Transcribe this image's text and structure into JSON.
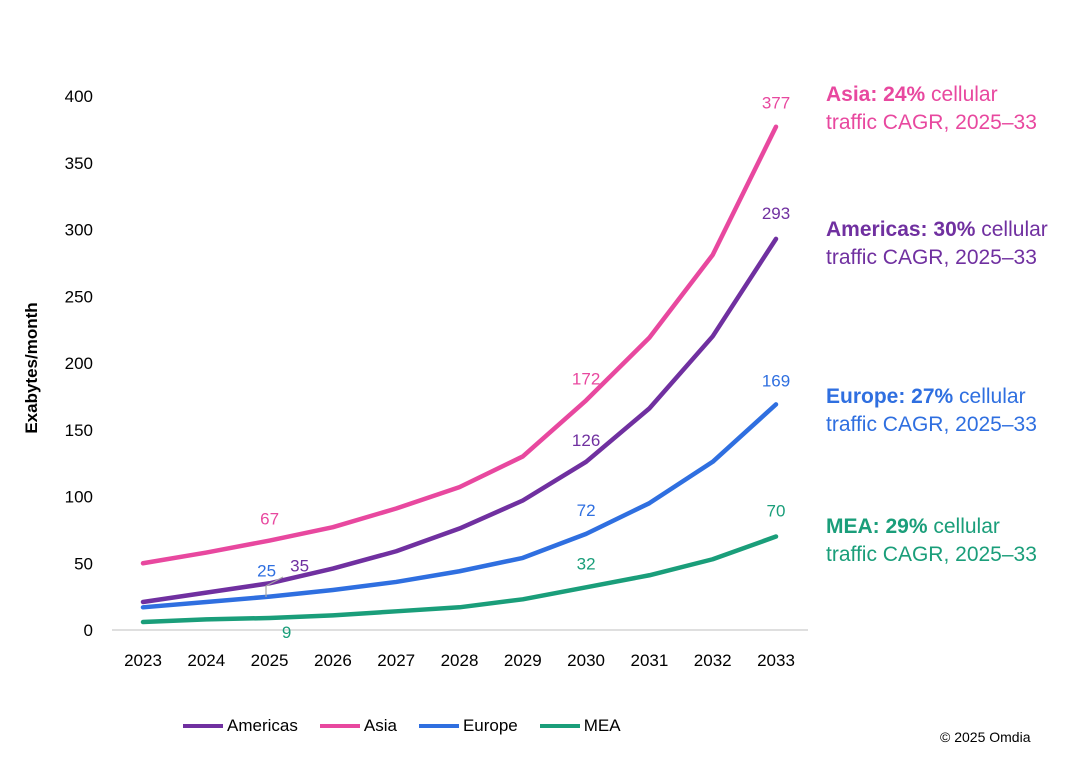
{
  "chart_data": {
    "type": "line",
    "title": "",
    "xlabel": "",
    "ylabel": "Exabytes/month",
    "ylim": [
      0,
      400
    ],
    "yticks": [
      0,
      50,
      100,
      150,
      200,
      250,
      300,
      350,
      400
    ],
    "x": [
      "2023",
      "2024",
      "2025",
      "2026",
      "2027",
      "2028",
      "2029",
      "2030",
      "2031",
      "2032",
      "2033"
    ],
    "grid": false,
    "legend_position": "bottom",
    "series": [
      {
        "name": "Americas",
        "color": "#7030a0",
        "values": [
          21,
          28,
          35,
          46,
          59,
          76,
          97,
          126,
          166,
          220,
          293
        ],
        "labeled": [
          2,
          7,
          10
        ]
      },
      {
        "name": "Asia",
        "color": "#e8489f",
        "values": [
          50,
          58,
          67,
          77,
          91,
          107,
          130,
          172,
          219,
          281,
          377
        ],
        "labeled": [
          2,
          7,
          10
        ]
      },
      {
        "name": "Europe",
        "color": "#2f6fe0",
        "values": [
          17,
          21,
          25,
          30,
          36,
          44,
          54,
          72,
          95,
          126,
          169
        ],
        "labeled": [
          2,
          7,
          10
        ]
      },
      {
        "name": "MEA",
        "color": "#1a9e7a",
        "values": [
          6,
          8,
          9,
          11,
          14,
          17,
          23,
          32,
          41,
          53,
          70
        ],
        "labeled": [
          2,
          7,
          10
        ]
      }
    ],
    "annotations": [
      {
        "series": "Asia",
        "bold": "Asia: 24%",
        "rest": " cellular",
        "line2": "traffic CAGR, 2025–33"
      },
      {
        "series": "Americas",
        "bold": "Americas: 30%",
        "rest": " cellular",
        "line2": "traffic CAGR, 2025–33"
      },
      {
        "series": "Europe",
        "bold": "Europe: 27%",
        "rest": " cellular",
        "line2": "traffic CAGR, 2025–33"
      },
      {
        "series": "MEA",
        "bold": "MEA: 29%",
        "rest": " cellular",
        "line2": "traffic CAGR, 2025–33"
      }
    ]
  },
  "copyright": "© 2025 Omdia"
}
